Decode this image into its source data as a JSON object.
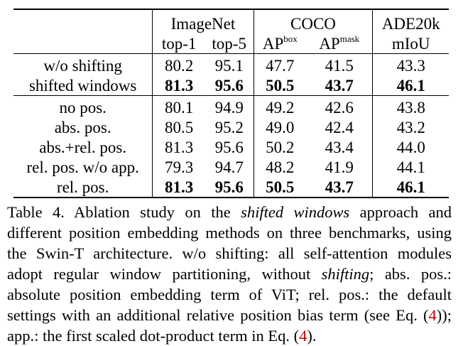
{
  "table": {
    "groups": [
      {
        "label": "ImageNet"
      },
      {
        "label": "COCO"
      },
      {
        "label": "ADE20k"
      }
    ],
    "subheaders": {
      "top1": "top-1",
      "top5": "top-5",
      "apbox_base": "AP",
      "apbox_sup": "box",
      "apmask_base": "AP",
      "apmask_sup": "mask",
      "miou": "mIoU"
    },
    "section1": [
      {
        "label": "w/o shifting",
        "top1": "80.2",
        "top5": "95.1",
        "apbox": "47.7",
        "apmask": "41.5",
        "miou": "43.3"
      },
      {
        "label": "shifted windows",
        "top1": "81.3",
        "top5": "95.6",
        "apbox": "50.5",
        "apmask": "43.7",
        "miou": "46.1"
      }
    ],
    "section2": [
      {
        "label": "no pos.",
        "top1": "80.1",
        "top5": "94.9",
        "apbox": "49.2",
        "apmask": "42.6",
        "miou": "43.8"
      },
      {
        "label": "abs. pos.",
        "top1": "80.5",
        "top5": "95.2",
        "apbox": "49.0",
        "apmask": "42.4",
        "miou": "43.2"
      },
      {
        "label": "abs.+rel. pos.",
        "top1": "81.3",
        "top5": "95.6",
        "apbox": "50.2",
        "apmask": "43.4",
        "miou": "44.0"
      },
      {
        "label": "rel. pos. w/o app.",
        "top1": "79.3",
        "top5": "94.7",
        "apbox": "48.2",
        "apmask": "41.9",
        "miou": "44.1"
      },
      {
        "label": "rel. pos.",
        "top1": "81.3",
        "top5": "95.6",
        "apbox": "50.5",
        "apmask": "43.7",
        "miou": "46.1"
      }
    ]
  },
  "caption": {
    "p1": "Table 4. Ablation study on the ",
    "em1": "shifted windows",
    "p2": " approach and different position embedding methods on three benchmarks, using the Swin-T architecture. w/o shifting: all self-attention modules adopt regular window partitioning, without ",
    "em2": "shifting",
    "p3": "; abs. pos.: absolute position embedding term of ViT; rel. pos.: the default settings with an additional relative position bias term (see Eq. (",
    "ref1": "4",
    "p4": ")); app.: the first scaled dot-product term in Eq. (",
    "ref2": "4",
    "p5": ")."
  }
}
